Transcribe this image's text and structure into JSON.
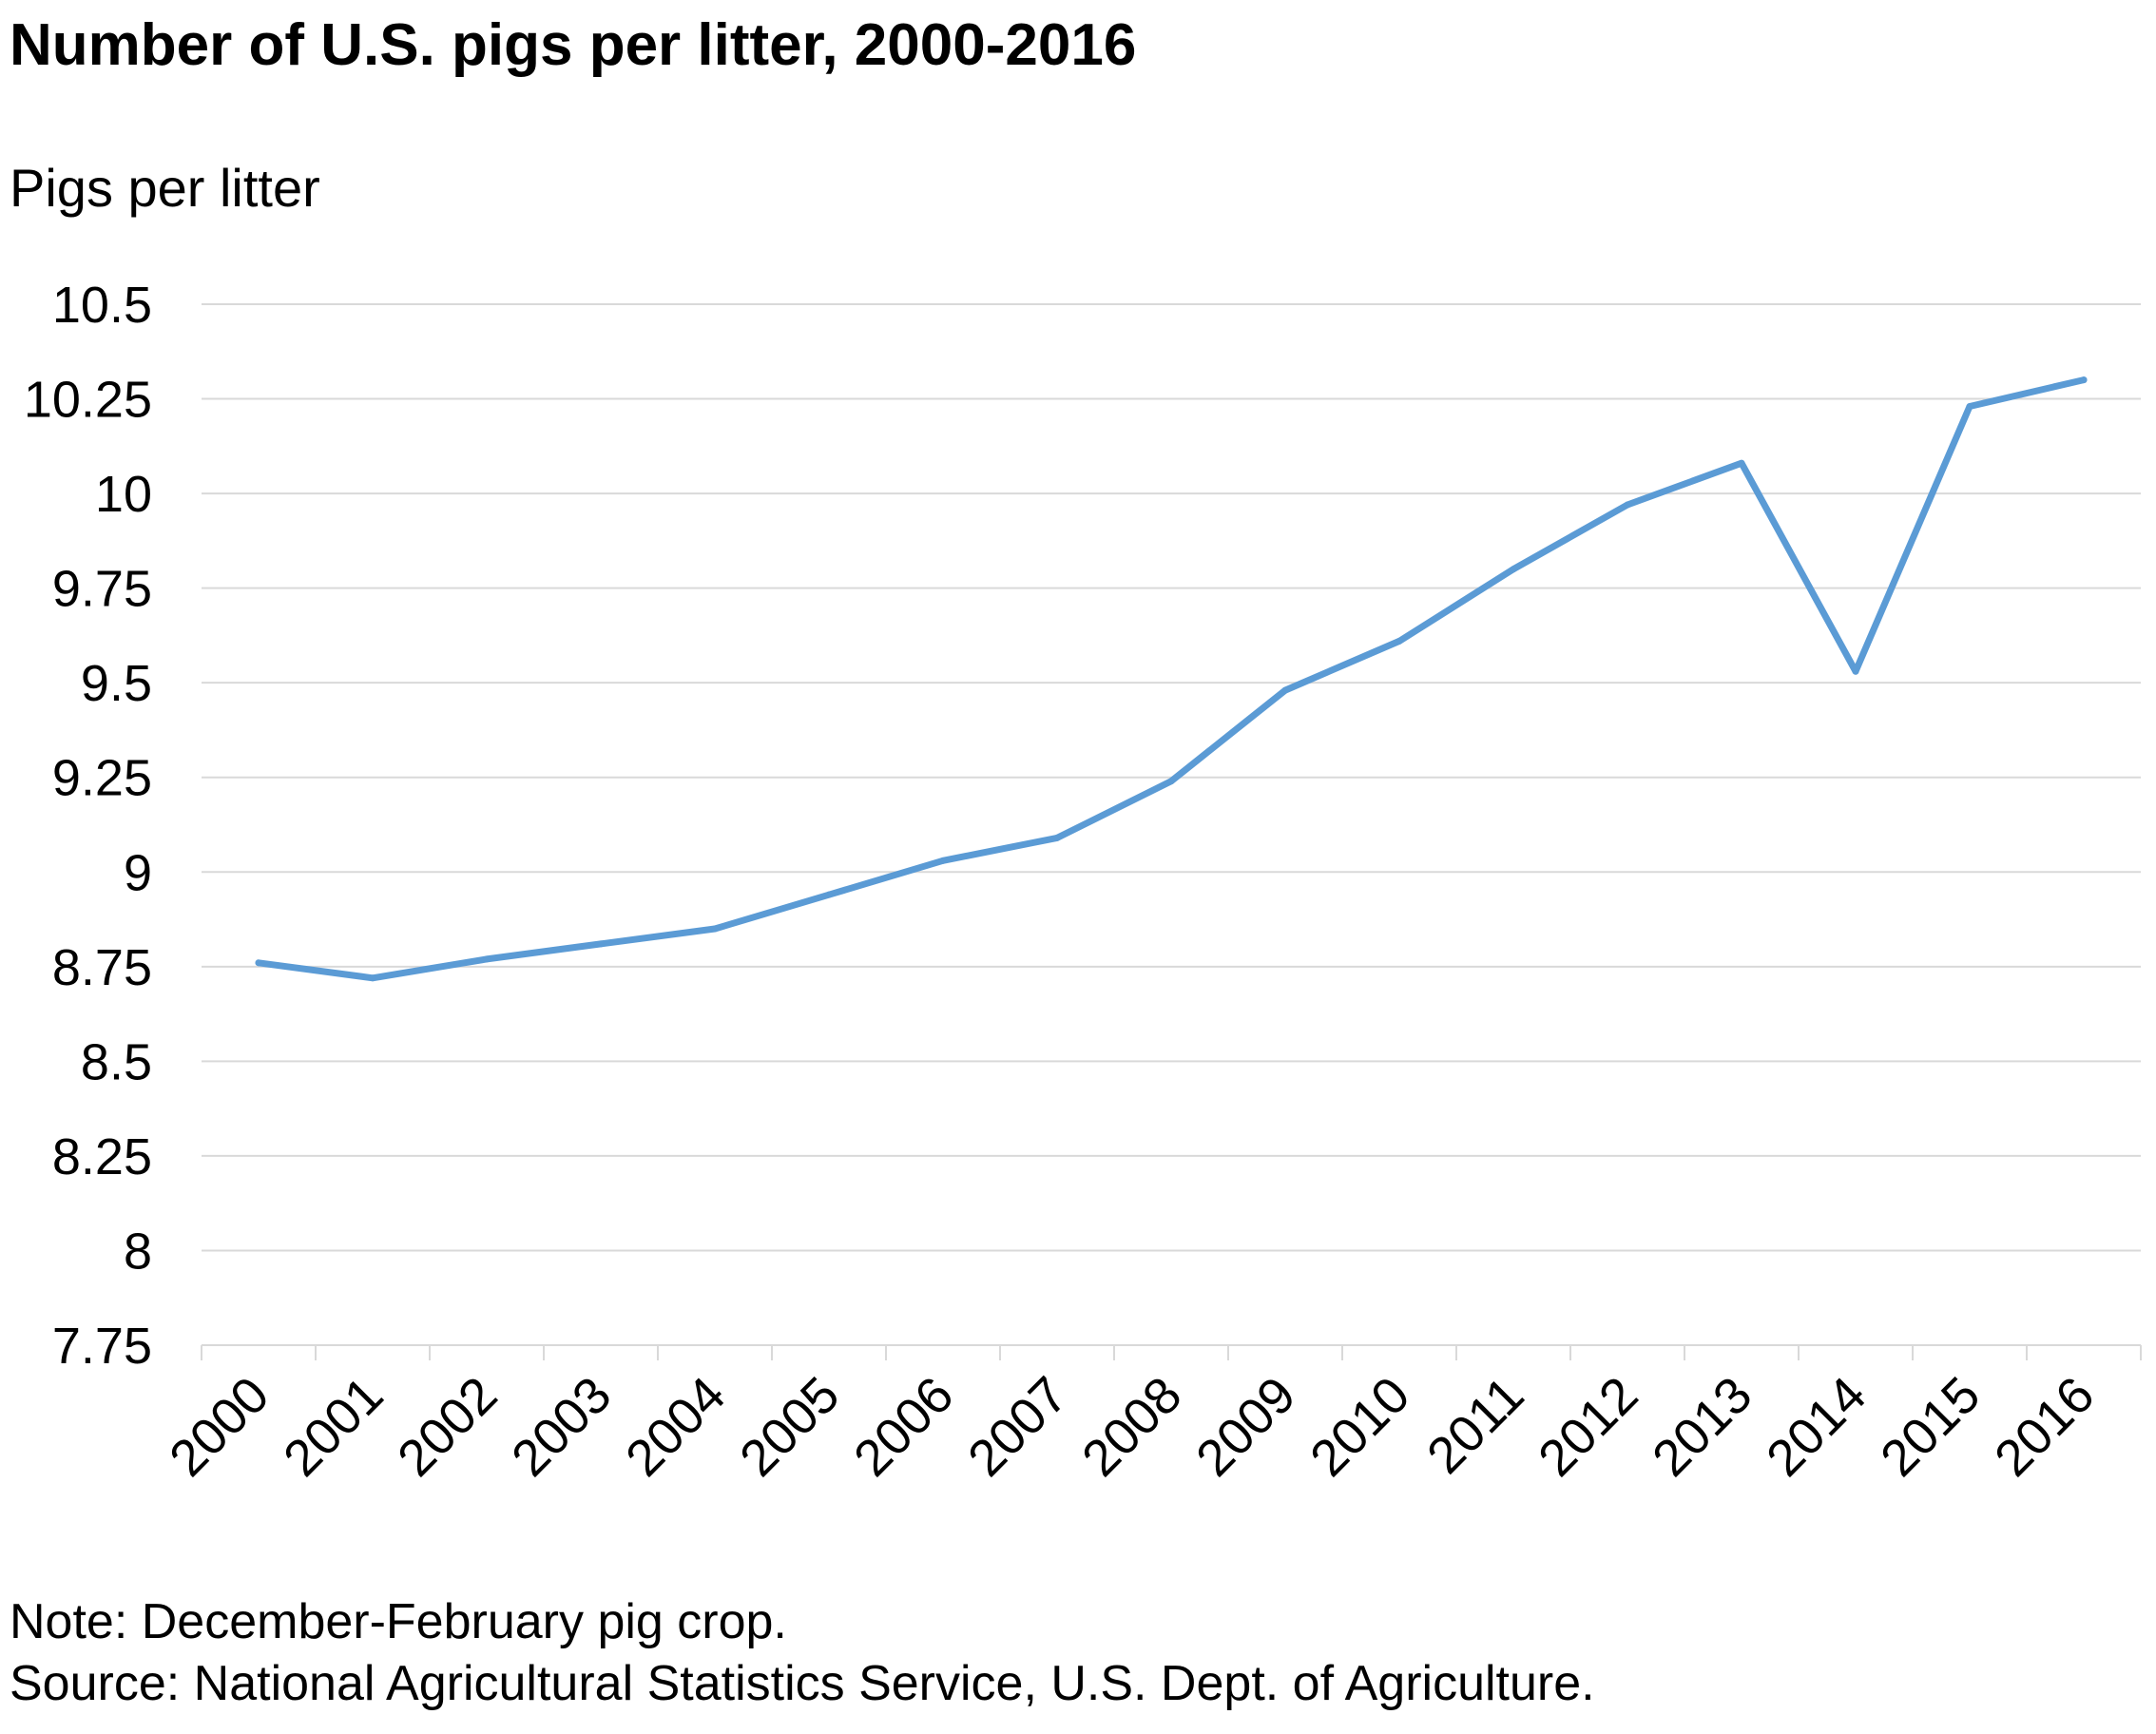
{
  "chart_data": {
    "type": "line",
    "title": "Number of U.S. pigs per litter, 2000-2016",
    "ylabel": "Pigs per litter",
    "xlabel": "",
    "categories": [
      "2000",
      "2001",
      "2002",
      "2003",
      "2004",
      "2005",
      "2006",
      "2007",
      "2008",
      "2009",
      "2010",
      "2011",
      "2012",
      "2013",
      "2014",
      "2015",
      "2016"
    ],
    "series": [
      {
        "values": [
          8.76,
          8.72,
          8.77,
          8.81,
          8.85,
          8.94,
          9.03,
          9.09,
          9.24,
          9.48,
          9.61,
          9.8,
          9.97,
          10.08,
          9.53,
          10.23,
          10.3
        ],
        "color": "#5b9bd5"
      }
    ],
    "ylim": [
      7.75,
      10.5
    ],
    "yticks": [
      "7.75",
      "8",
      "8.25",
      "8.5",
      "8.75",
      "9",
      "9.25",
      "9.5",
      "9.75",
      "10",
      "10.25",
      "10.5"
    ],
    "grid": true,
    "legend": "none"
  },
  "footer": {
    "note": "Note: December-February pig crop.",
    "source": "Source: National Agricultural Statistics Service, U.S. Dept. of Agriculture."
  },
  "colors": {
    "line": "#5b9bd5",
    "grid": "#d9d9d9",
    "axis": "#d9d9d9"
  }
}
